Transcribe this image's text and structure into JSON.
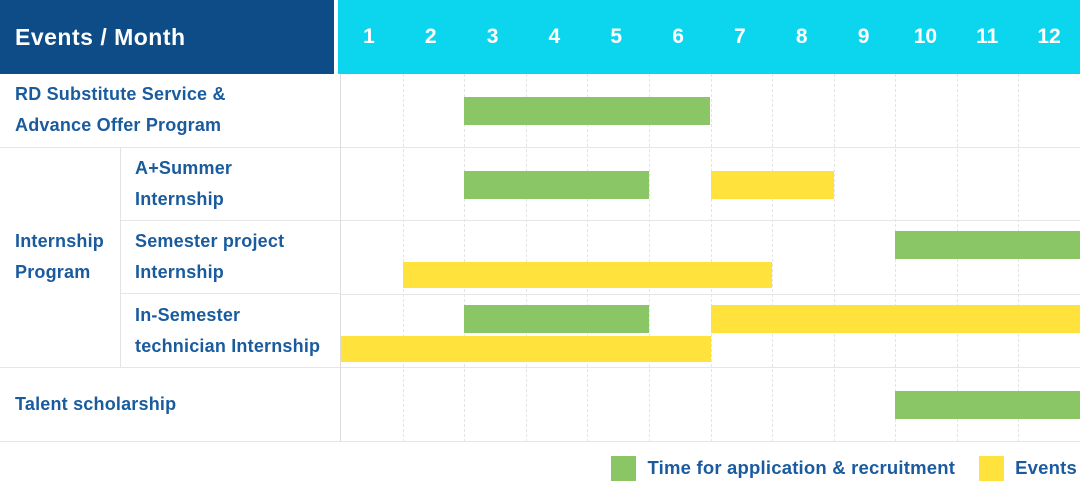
{
  "header": {
    "title": "Events / Month",
    "axis_label": "Month",
    "months": [
      "1",
      "2",
      "3",
      "4",
      "5",
      "6",
      "7",
      "8",
      "9",
      "10",
      "11",
      "12"
    ]
  },
  "colors": {
    "navy": "#0e4c87",
    "cyan": "#0cd6ee",
    "green": "#8ac566",
    "yellow": "#ffe23c",
    "label_text": "#1a5b9e",
    "grid_line": "#e4e4e4"
  },
  "chart_data": {
    "type": "gantt",
    "x_range": [
      1,
      12
    ],
    "x_ticks": [
      "1",
      "2",
      "3",
      "4",
      "5",
      "6",
      "7",
      "8",
      "9",
      "10",
      "11",
      "12"
    ],
    "group_label": "Internship Program",
    "group_label_lines": [
      "Internship",
      "Program"
    ],
    "rows": [
      {
        "label": "RD Substitute Service & Advance Offer Program",
        "label_lines": [
          "RD Substitute Service &",
          "Advance Offer Program"
        ],
        "group": false,
        "bars": [
          {
            "type": "application",
            "color": "green",
            "start_month": 3,
            "end_month": 6,
            "lane": "center"
          }
        ]
      },
      {
        "label": "A+Summer Internship",
        "label_lines": [
          "A+Summer",
          "Internship"
        ],
        "group": true,
        "bars": [
          {
            "type": "application",
            "color": "green",
            "start_month": 3,
            "end_month": 5,
            "lane": "center"
          },
          {
            "type": "event",
            "color": "yellow",
            "start_month": 7,
            "end_month": 8,
            "lane": "center"
          }
        ]
      },
      {
        "label": "Semester project Internship",
        "label_lines": [
          "Semester project",
          "Internship"
        ],
        "group": true,
        "bars": [
          {
            "type": "application",
            "color": "green",
            "start_month": 10,
            "end_month": 12,
            "lane": "top"
          },
          {
            "type": "event",
            "color": "yellow",
            "start_month": 2,
            "end_month": 7,
            "lane": "bottom"
          }
        ]
      },
      {
        "label": "In-Semester technician Internship",
        "label_lines": [
          "In-Semester",
          "technician Internship"
        ],
        "group": true,
        "bars": [
          {
            "type": "application",
            "color": "green",
            "start_month": 3,
            "end_month": 5,
            "lane": "top"
          },
          {
            "type": "event",
            "color": "yellow",
            "start_month": 7,
            "end_month": 12,
            "lane": "top"
          },
          {
            "type": "event",
            "color": "yellow",
            "start_month": 1,
            "end_month": 6,
            "lane": "bottom"
          }
        ]
      },
      {
        "label": "Talent scholarship",
        "label_lines": [
          "Talent scholarship"
        ],
        "group": false,
        "bars": [
          {
            "type": "application",
            "color": "green",
            "start_month": 10,
            "end_month": 12,
            "lane": "center"
          }
        ]
      }
    ]
  },
  "legend": {
    "items": [
      {
        "color": "green",
        "label": "Time for application & recruitment"
      },
      {
        "color": "yellow",
        "label": "Events"
      }
    ]
  }
}
